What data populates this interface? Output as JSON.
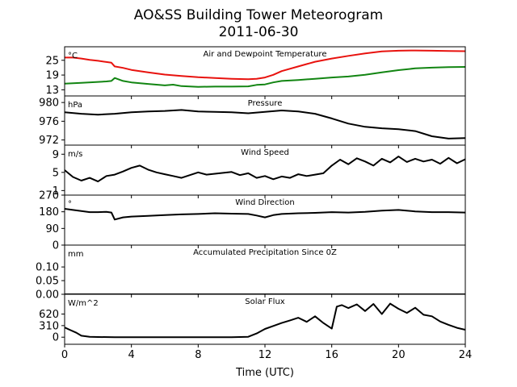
{
  "title": "AO&SS Building Tower Meteorogram",
  "subtitle": "2011-06-30",
  "xlabel": "Time (UTC)",
  "chart_data": {
    "type": "line",
    "x_unit": "hours UTC",
    "xlim": [
      0,
      24
    ],
    "x_ticks": [
      0,
      4,
      8,
      12,
      16,
      20,
      24
    ],
    "x_tick_labels": [
      "0",
      "4",
      "8",
      "12",
      "16",
      "20",
      "24"
    ],
    "panels": [
      {
        "id": "temp",
        "title": "Air and Dewpoint Temperature",
        "unit": "°C",
        "ylim": [
          10.5,
          30.5
        ],
        "y_ticks": [
          13,
          19,
          25
        ],
        "y_tick_labels": [
          "13",
          "19",
          "25"
        ],
        "series": [
          {
            "color": "#e8120e",
            "x": [
              0,
              0.5,
              1,
              1.5,
              2,
              2.5,
              2.8,
              3,
              3.5,
              4,
              5,
              6,
              7,
              8,
              9,
              10,
              11,
              11.5,
              12,
              12.5,
              13,
              14,
              15,
              16,
              17,
              18,
              19,
              20,
              21,
              22,
              23,
              24
            ],
            "y": [
              26.1,
              26.1,
              25.7,
              25.2,
              24.8,
              24.3,
              24.0,
              22.5,
              21.9,
              21.1,
              20.1,
              19.2,
              18.6,
              18.1,
              17.8,
              17.5,
              17.3,
              17.5,
              18.0,
              19.1,
              20.6,
              22.5,
              24.4,
              25.7,
              26.8,
              27.8,
              28.6,
              28.9,
              29.0,
              28.9,
              28.8,
              28.7
            ]
          },
          {
            "color": "#128512",
            "x": [
              0,
              1,
              2,
              2.5,
              2.8,
              3,
              3.5,
              4,
              5,
              6,
              6.5,
              7,
              8,
              9,
              10,
              11,
              11.5,
              12,
              12.5,
              13,
              14,
              15,
              16,
              17,
              18,
              19,
              20,
              21,
              22,
              23,
              24
            ],
            "y": [
              15.5,
              15.8,
              16.2,
              16.4,
              16.6,
              17.8,
              16.6,
              16.0,
              15.4,
              14.8,
              15.1,
              14.5,
              14.2,
              14.3,
              14.3,
              14.4,
              15.0,
              15.2,
              16.0,
              16.6,
              17.0,
              17.5,
              18.0,
              18.4,
              19.1,
              20.1,
              21.0,
              21.7,
              22.0,
              22.2,
              22.3
            ]
          }
        ]
      },
      {
        "id": "pressure",
        "title": "Pressure",
        "unit": "hPa",
        "ylim": [
          970.9,
          981.4
        ],
        "y_ticks": [
          972,
          976,
          980
        ],
        "y_tick_labels": [
          "972",
          "976",
          "980"
        ],
        "series": [
          {
            "color": "#000000",
            "x": [
              0,
              1,
              2,
              3,
              4,
              5,
              6,
              7,
              8,
              9,
              10,
              11,
              12,
              13,
              14,
              15,
              16,
              17,
              18,
              19,
              20,
              21,
              22,
              23,
              24
            ],
            "y": [
              977.9,
              977.6,
              977.4,
              977.6,
              977.9,
              978.1,
              978.2,
              978.4,
              978.1,
              978.0,
              977.9,
              977.7,
              978.0,
              978.3,
              978.1,
              977.6,
              976.6,
              975.5,
              974.8,
              974.5,
              974.3,
              973.9,
              972.8,
              972.3,
              972.4
            ]
          }
        ]
      },
      {
        "id": "wind-speed",
        "title": "Wind Speed",
        "unit": "m/s",
        "ylim": [
          0,
          11
        ],
        "y_ticks": [
          1,
          5,
          9
        ],
        "y_tick_labels": [
          "1",
          "5",
          "9"
        ],
        "series": [
          {
            "color": "#000000",
            "x": [
              0,
              0.5,
              1,
              1.5,
              2,
              2.5,
              3,
              3.5,
              4,
              4.5,
              5,
              5.5,
              6,
              6.5,
              7,
              7.5,
              8,
              8.5,
              9,
              9.5,
              10,
              10.5,
              11,
              11.5,
              12,
              12.5,
              13,
              13.5,
              14,
              14.5,
              15,
              15.5,
              16,
              16.5,
              17,
              17.5,
              18,
              18.5,
              19,
              19.5,
              20,
              20.5,
              21,
              21.5,
              22,
              22.5,
              23,
              23.5,
              24
            ],
            "y": [
              5.5,
              4.0,
              3.2,
              3.8,
              3.0,
              4.2,
              4.5,
              5.2,
              6.0,
              6.5,
              5.6,
              5.0,
              4.6,
              4.2,
              3.8,
              4.4,
              5.0,
              4.5,
              4.7,
              4.9,
              5.1,
              4.4,
              4.8,
              3.8,
              4.2,
              3.5,
              4.1,
              3.8,
              4.6,
              4.2,
              4.5,
              4.8,
              6.5,
              7.8,
              6.8,
              8.1,
              7.4,
              6.5,
              8.0,
              7.2,
              8.5,
              7.3,
              8.0,
              7.4,
              7.8,
              6.9,
              8.2,
              7.0,
              7.9
            ]
          }
        ]
      },
      {
        "id": "wind-direction",
        "title": "Wind Direction",
        "unit": "°",
        "ylim": [
          0,
          270
        ],
        "y_ticks": [
          0,
          90,
          180,
          270
        ],
        "y_tick_labels": [
          "0",
          "90",
          "180",
          "270"
        ],
        "series": [
          {
            "color": "#000000",
            "x": [
              0,
              0.5,
              1,
              1.5,
              2,
              2.5,
              2.8,
              3,
              3.5,
              4,
              5,
              6,
              7,
              8,
              9,
              10,
              11,
              11.5,
              12,
              12.5,
              13,
              14,
              15,
              16,
              17,
              18,
              19,
              20,
              21,
              22,
              23,
              24
            ],
            "y": [
              196,
              190,
              184,
              178,
              178,
              180,
              176,
              138,
              150,
              154,
              158,
              162,
              166,
              168,
              172,
              170,
              168,
              160,
              150,
              162,
              168,
              172,
              174,
              178,
              176,
              180,
              186,
              190,
              182,
              178,
              178,
              176
            ]
          }
        ]
      },
      {
        "id": "precip",
        "title": "Accumulated Precipitation Since 0Z",
        "unit": "mm",
        "ylim": [
          0,
          0.18
        ],
        "y_ticks": [
          0.0,
          0.05,
          0.1
        ],
        "y_tick_labels": [
          "0.00",
          "0.05",
          "0.10"
        ],
        "series": [
          {
            "color": "#000000",
            "x": [
              0,
              24
            ],
            "y": [
              0,
              0
            ]
          }
        ]
      },
      {
        "id": "solar",
        "title": "Solar Flux",
        "unit": "W/m^2",
        "ylim": [
          -190,
          1150
        ],
        "y_ticks": [
          0,
          310,
          620
        ],
        "y_tick_labels": [
          "0",
          "310",
          "620"
        ],
        "series": [
          {
            "color": "#000000",
            "x": [
              0,
              0.3,
              0.7,
              1,
              1.5,
              2,
              3,
              4,
              5,
              6,
              7,
              8,
              9,
              10,
              11,
              11.5,
              12,
              12.5,
              13,
              13.5,
              14,
              14.5,
              15,
              15.5,
              16,
              16.3,
              16.6,
              17,
              17.5,
              18,
              18.5,
              19,
              19.5,
              20,
              20.5,
              21,
              21.5,
              22,
              22.5,
              23,
              23.5,
              24
            ],
            "y": [
              260,
              200,
              120,
              40,
              10,
              5,
              0,
              0,
              0,
              0,
              0,
              0,
              0,
              0,
              10,
              100,
              220,
              300,
              380,
              450,
              520,
              410,
              560,
              380,
              230,
              820,
              860,
              780,
              880,
              700,
              890,
              620,
              900,
              760,
              650,
              790,
              600,
              560,
              420,
              330,
              250,
              200
            ]
          }
        ]
      }
    ]
  }
}
